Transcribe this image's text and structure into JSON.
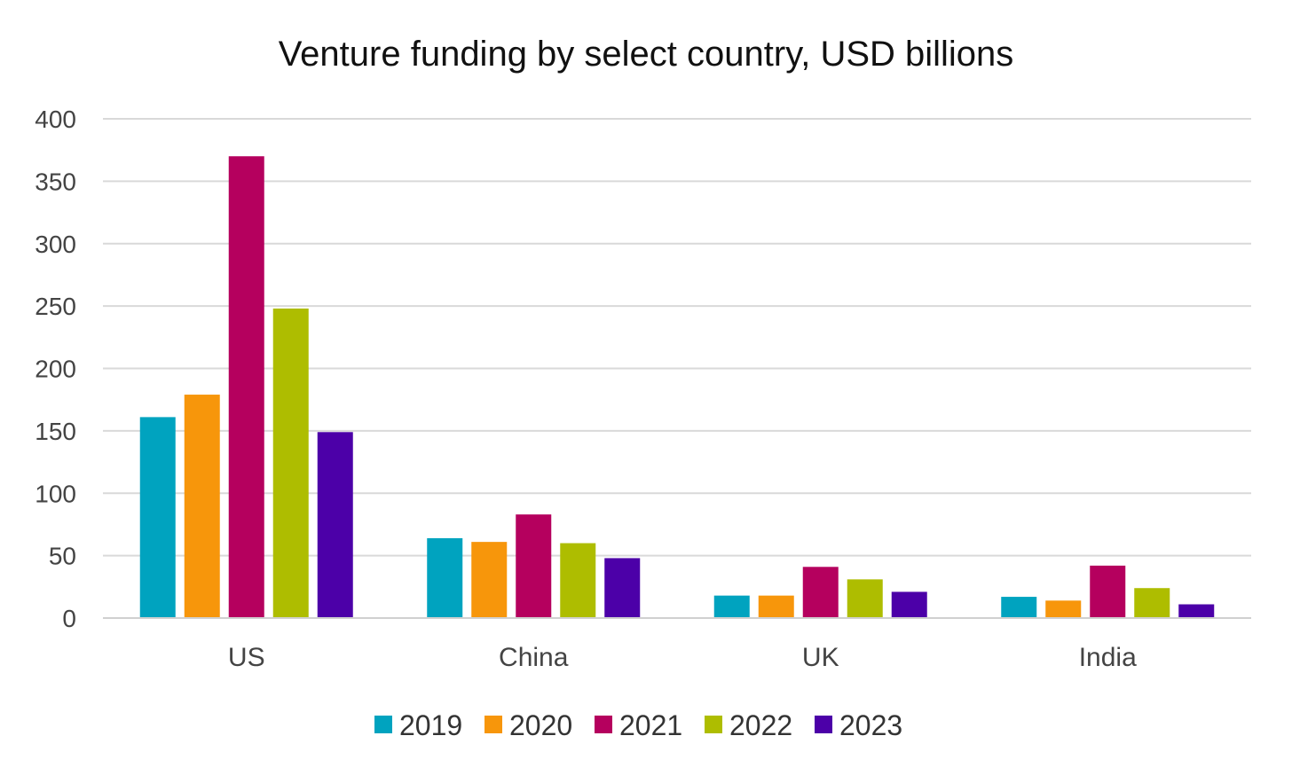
{
  "chart_data": {
    "type": "bar",
    "title": "Venture funding by select country, USD billions",
    "xlabel": "",
    "ylabel": "",
    "categories": [
      "US",
      "China",
      "UK",
      "India"
    ],
    "yticks": [
      "0",
      "50",
      "100",
      "150",
      "200",
      "250",
      "300",
      "350",
      "400"
    ],
    "ylim": [
      0,
      400
    ],
    "grid": true,
    "legend_position": "bottom",
    "series": [
      {
        "name": "2019",
        "color": "#00A3BF",
        "values": [
          161,
          64,
          18,
          17
        ]
      },
      {
        "name": "2020",
        "color": "#F7960B",
        "values": [
          179,
          61,
          18,
          14
        ]
      },
      {
        "name": "2021",
        "color": "#B5005E",
        "values": [
          370,
          83,
          41,
          42
        ]
      },
      {
        "name": "2022",
        "color": "#AEBD00",
        "values": [
          248,
          60,
          31,
          24
        ]
      },
      {
        "name": "2023",
        "color": "#4C00A8",
        "values": [
          149,
          48,
          21,
          11
        ]
      }
    ]
  }
}
